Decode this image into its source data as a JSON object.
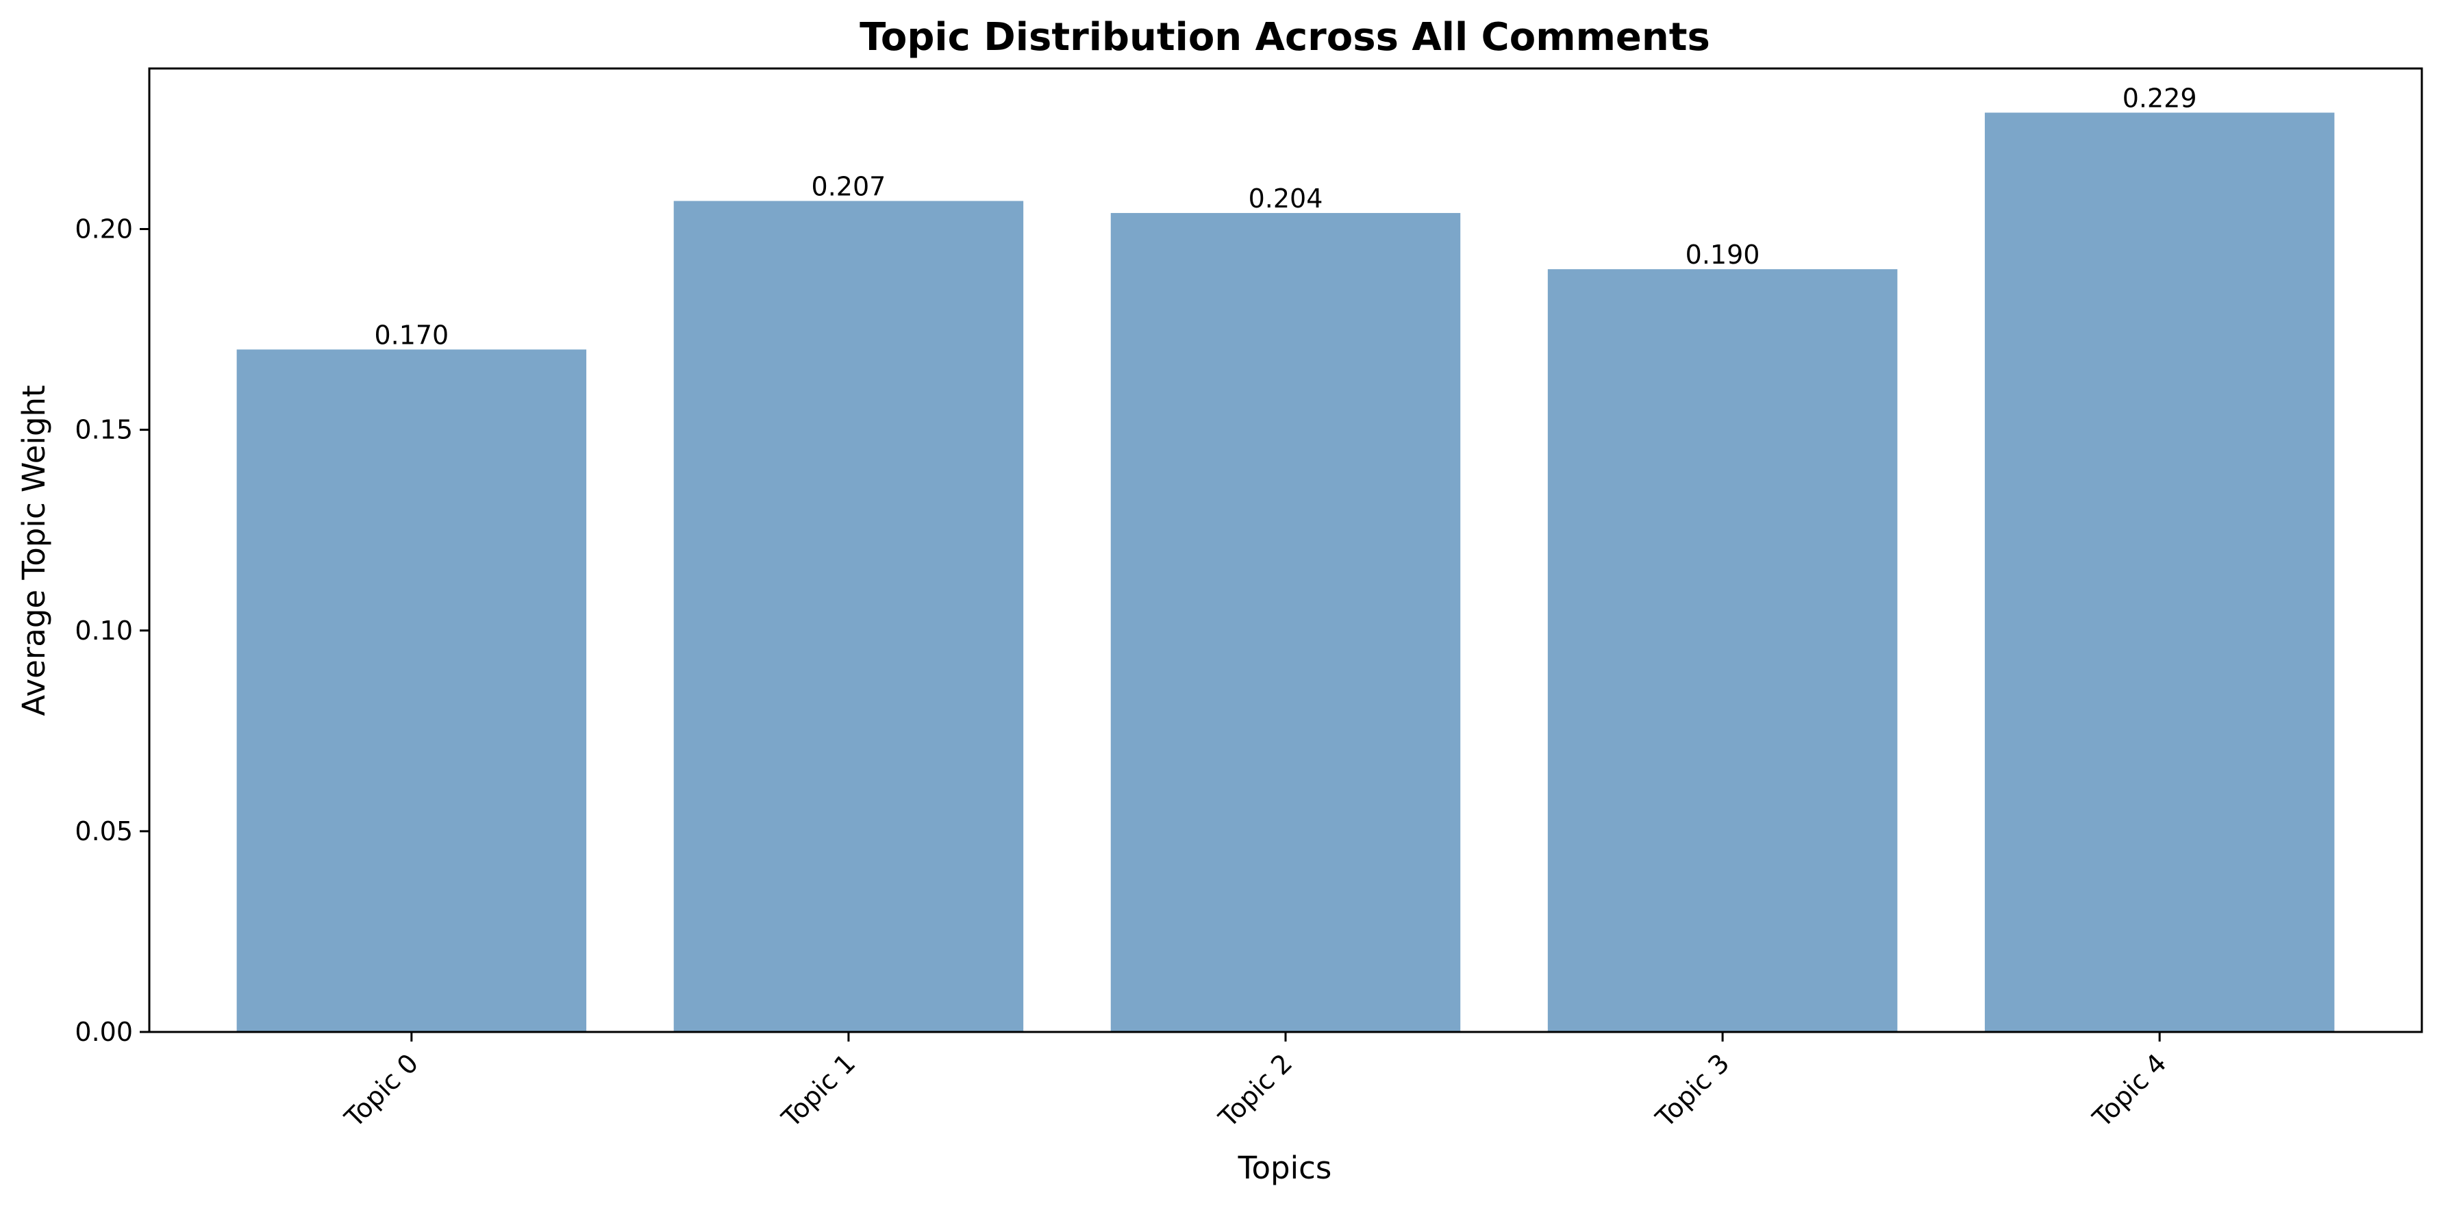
{
  "chart_data": {
    "type": "bar",
    "title": "Topic Distribution Across All Comments",
    "xlabel": "Topics",
    "ylabel": "Average Topic Weight",
    "categories": [
      "Topic 0",
      "Topic 1",
      "Topic 2",
      "Topic 3",
      "Topic 4"
    ],
    "values": [
      0.17,
      0.207,
      0.204,
      0.19,
      0.229
    ],
    "data_labels": [
      "0.170",
      "0.207",
      "0.204",
      "0.190",
      "0.229"
    ],
    "ylim": [
      0,
      0.24
    ],
    "yticks": [
      0.0,
      0.05,
      0.1,
      0.15,
      0.2
    ],
    "ytick_labels": [
      "0.00",
      "0.05",
      "0.10",
      "0.15",
      "0.20"
    ],
    "xtick_rotation_deg": 45,
    "bar_color": "#7ca6c9",
    "grid": false,
    "legend": "none"
  }
}
